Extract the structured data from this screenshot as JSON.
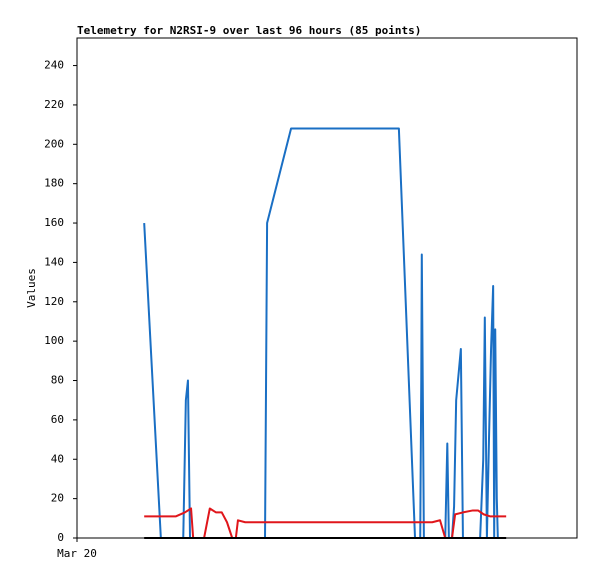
{
  "chart_data": {
    "type": "line",
    "title": "Telemetry for N2RSI-9 over last 96 hours (85 points)",
    "y_label": "Values",
    "xlim": [
      0,
      96
    ],
    "xticks": [
      {
        "value": 0,
        "label": "Mar 20"
      }
    ],
    "ylim": [
      0,
      254
    ],
    "yticks": [
      0,
      20,
      40,
      60,
      80,
      100,
      120,
      140,
      160,
      180,
      200,
      220,
      240
    ],
    "series": [
      {
        "color": "#1a6fc4",
        "x": [
          12.9,
          16.1,
          20.4,
          20.9,
          21.3,
          21.7,
          36.1,
          36.5,
          41.1,
          61.8,
          64.9,
          65.9,
          66.1,
          66.2,
          66.6,
          70.7,
          71.1,
          71.4,
          72.0,
          72.4,
          72.8,
          73.7,
          74.1,
          77.4,
          78.0,
          78.3,
          78.7,
          79.1,
          79.5,
          79.9,
          80.1,
          80.3,
          80.6,
          80.8
        ],
        "values": [
          160,
          0,
          0,
          70,
          80,
          0,
          0,
          160,
          208,
          208,
          0,
          0,
          80,
          144,
          0,
          0,
          48,
          0,
          0,
          16,
          70,
          96,
          0,
          0,
          40,
          112,
          0,
          50,
          96,
          128,
          0,
          106,
          20,
          0
        ]
      },
      {
        "color": "#e0161b",
        "x": [
          12.9,
          19.0,
          20.7,
          21.9,
          22.3,
          24.4,
          25.5,
          26.7,
          27.8,
          28.8,
          29.8,
          30.5,
          30.9,
          32.3,
          65.9,
          68.2,
          69.7,
          70.7,
          72.0,
          72.6,
          74.1,
          76.0,
          77.0,
          78.1,
          79.3,
          82.4
        ],
        "values": [
          11,
          11,
          13,
          15,
          0,
          0,
          15,
          13,
          13,
          8,
          0,
          0,
          9,
          8,
          8,
          8,
          9,
          0,
          0,
          12,
          13,
          14,
          14,
          12,
          11,
          11
        ]
      },
      {
        "color": "#000000",
        "x": [
          12.9,
          82.4
        ],
        "values": [
          0,
          0
        ]
      }
    ]
  }
}
